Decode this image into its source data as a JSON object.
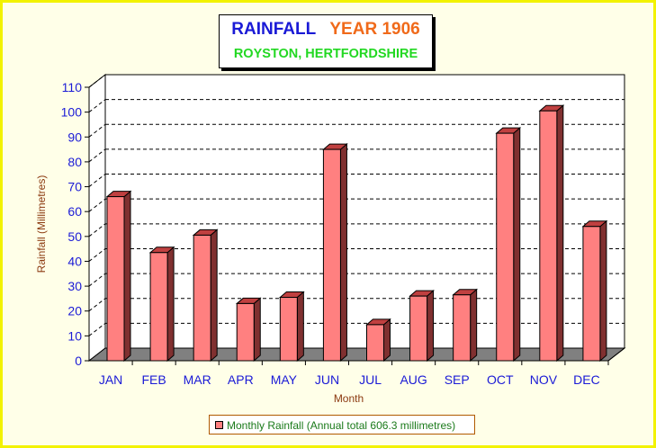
{
  "title": {
    "part1": "RAINFALL",
    "part2": "YEAR 1906",
    "subtitle": "ROYSTON, HERTFORDSHIRE"
  },
  "colors": {
    "bar_front": "#ff8080",
    "bar_side": "#803030",
    "bar_top": "#c04040",
    "floor": "#808080",
    "axis_text": "#1a1ad6",
    "label_text": "#8b3a10",
    "title_blue": "#1a1ad6",
    "title_orange": "#f06a1a",
    "subtitle_green": "#22d822"
  },
  "chart_data": {
    "type": "bar",
    "categories": [
      "JAN",
      "FEB",
      "MAR",
      "APR",
      "MAY",
      "JUN",
      "JUL",
      "AUG",
      "SEP",
      "OCT",
      "NOV",
      "DEC"
    ],
    "series": [
      {
        "name": "Monthly Rainfall (Annual total 606.3 millimetres)",
        "values": [
          66,
          43.5,
          50.5,
          23,
          25.5,
          85,
          14.5,
          26,
          26.5,
          91.5,
          100.5,
          54
        ]
      }
    ],
    "xlabel": "Month",
    "ylabel": "Rainfall (Millimetres)",
    "ylim": [
      0,
      110
    ],
    "yticks": [
      0,
      10,
      20,
      30,
      40,
      50,
      60,
      70,
      80,
      90,
      100,
      110
    ],
    "grid": true,
    "legend_position": "bottom-center",
    "style": "3d"
  },
  "legend": {
    "label": "Monthly Rainfall (Annual total 606.3 millimetres)"
  }
}
